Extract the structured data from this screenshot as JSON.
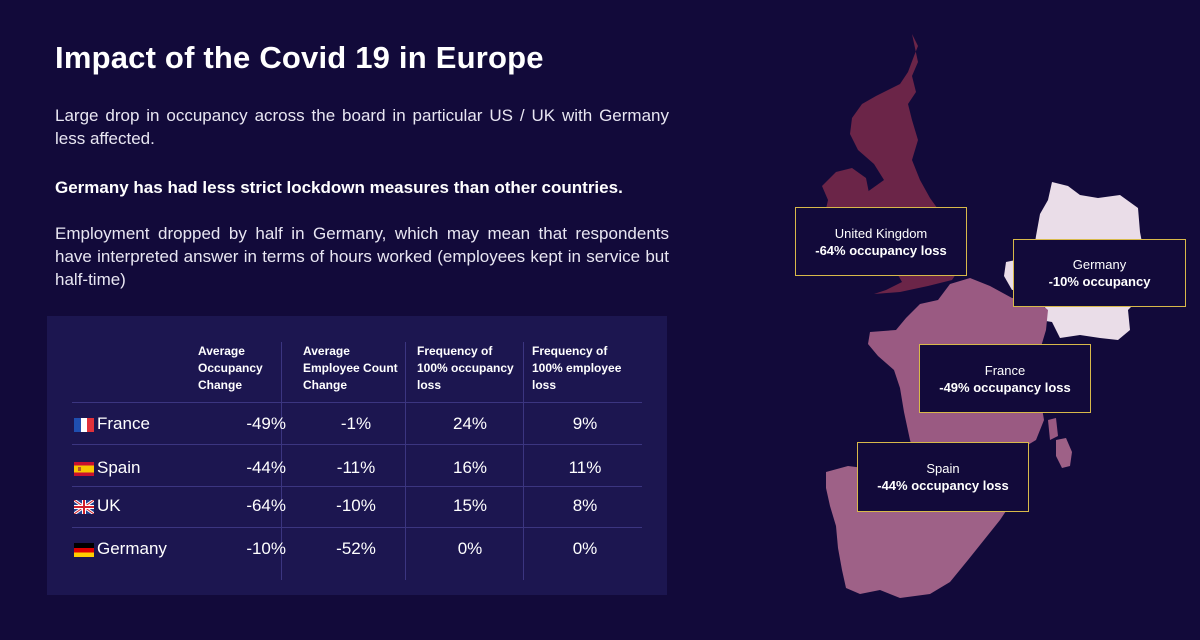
{
  "title": "Impact of the Covid 19 in Europe",
  "paragraphs": {
    "p1": "Large drop in occupancy across the board in particular US / UK with Germany less affected.",
    "p2": "Germany has had less strict lockdown measures than other countries.",
    "p3": "Employment dropped by half in Germany, which may mean that respondents have interpreted answer in terms of hours worked (employees kept in service but half-time)"
  },
  "table": {
    "headers": [
      "Average Occupancy Change",
      "Average Employee Count Change",
      "Frequency of 100% occupancy loss",
      "Frequency of 100% employee loss"
    ],
    "rows": [
      {
        "flag": "fr-flag",
        "country": "France",
        "values": [
          "-49%",
          "-1%",
          "24%",
          "9%"
        ]
      },
      {
        "flag": "es-flag",
        "country": "Spain",
        "values": [
          "-44%",
          "-11%",
          "16%",
          "11%"
        ]
      },
      {
        "flag": "gb-flag",
        "country": "UK",
        "values": [
          "-64%",
          "-10%",
          "15%",
          "8%"
        ]
      },
      {
        "flag": "de-flag",
        "country": "Germany",
        "values": [
          "-10%",
          "-52%",
          "0%",
          "0%"
        ]
      }
    ]
  },
  "map": {
    "colors": {
      "uk": "#6b2548",
      "france": "#9a5a82",
      "spain": "#9e6187",
      "germany": "#eadde8"
    },
    "callouts": {
      "uk": {
        "name": "United Kingdom",
        "value": "-64% occupancy loss"
      },
      "germany": {
        "name": "Germany",
        "value": "-10% occupancy"
      },
      "france": {
        "name": "France",
        "value": "-49% occupancy loss"
      },
      "spain": {
        "name": "Spain",
        "value": "-44% occupancy loss"
      }
    }
  },
  "colors": {
    "background": "#120a3a",
    "table_panel": "#1c1650",
    "callout_border": "#d8b94a"
  }
}
